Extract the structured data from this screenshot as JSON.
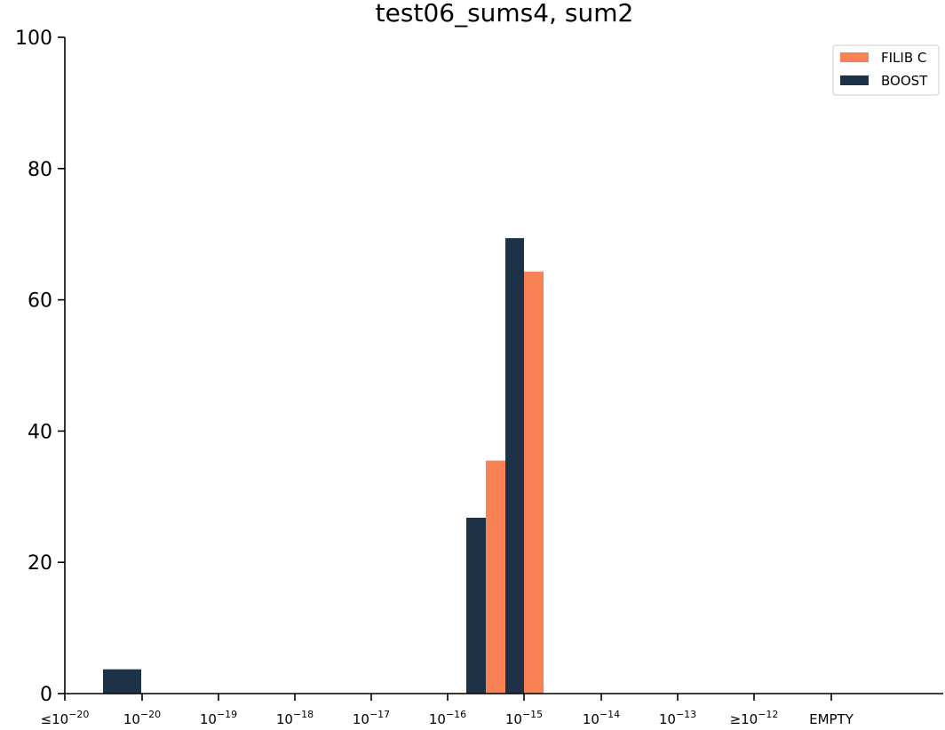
{
  "chart_data": {
    "type": "bar",
    "title": "test06_sums4, sum2",
    "xlabel": "",
    "ylabel": "",
    "ylim": [
      0,
      100
    ],
    "yticks": [
      0,
      20,
      40,
      60,
      80,
      100
    ],
    "grid": false,
    "legend_position": "top-right",
    "xtick_labels": [
      {
        "prefix": "≤",
        "base": "10",
        "exp": "−20"
      },
      {
        "prefix": "",
        "base": "10",
        "exp": "−20"
      },
      {
        "prefix": "",
        "base": "10",
        "exp": "−19"
      },
      {
        "prefix": "",
        "base": "10",
        "exp": "−18"
      },
      {
        "prefix": "",
        "base": "10",
        "exp": "−17"
      },
      {
        "prefix": "",
        "base": "10",
        "exp": "−16"
      },
      {
        "prefix": "",
        "base": "10",
        "exp": "−15"
      },
      {
        "prefix": "",
        "base": "10",
        "exp": "−14"
      },
      {
        "prefix": "",
        "base": "10",
        "exp": "−13"
      },
      {
        "prefix": "≥",
        "base": "10",
        "exp": "−12"
      },
      {
        "prefix": "EMPTY",
        "base": "",
        "exp": ""
      }
    ],
    "categories": [
      "≤10^-20",
      "10^-20",
      "10^-19",
      "10^-18",
      "10^-17",
      "10^-16",
      "10^-15",
      "10^-14",
      "10^-13",
      "≥10^-12",
      "EMPTY"
    ],
    "series": [
      {
        "name": "FILIB C",
        "color": "#f88255",
        "bars": [
          {
            "x": "10^-16 – 10^-15 (lower half)",
            "value": 35.5
          },
          {
            "x": "10^-16 – 10^-15 (upper half)",
            "value": 64.3
          },
          {
            "x": "below 10^-16",
            "value": 0.1
          }
        ]
      },
      {
        "name": "BOOST",
        "color": "#1d3247",
        "bars": [
          {
            "x": "≤10^-20 – 10^-20",
            "value": 3.7
          },
          {
            "x": "10^-16 – 10^-15 (lower half)",
            "value": 26.8
          },
          {
            "x": "10^-16 – 10^-15 (upper half)",
            "value": 69.4
          }
        ]
      }
    ]
  }
}
